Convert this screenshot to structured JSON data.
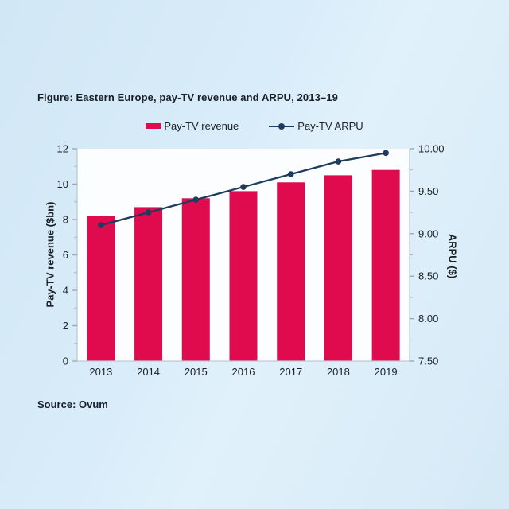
{
  "figure": {
    "title": "Figure: Eastern Europe, pay-TV revenue and ARPU, 2013–19",
    "source": "Source: Ovum"
  },
  "legend": {
    "items": [
      {
        "label": "Pay-TV revenue",
        "marker": "bar-swatch",
        "color": "#e00b4f"
      },
      {
        "label": "Pay-TV ARPU",
        "marker": "line-dot",
        "color": "#1e3c5c"
      }
    ]
  },
  "colors": {
    "accent_bar": "#e00b4f",
    "accent_line": "#1e3c5c",
    "page_background": "#d8ecf9",
    "plot_background": "#fbfdff",
    "axis_line": "#bccbd6",
    "tick_mark": "#93a5b1",
    "text": "#1c2127"
  },
  "chart_data": {
    "type": "bar+line combo",
    "categories": [
      "2013",
      "2014",
      "2015",
      "2016",
      "2017",
      "2018",
      "2019"
    ],
    "series": [
      {
        "name": "Pay-TV revenue",
        "type": "bar",
        "axis": "left",
        "values": [
          8.2,
          8.7,
          9.2,
          9.6,
          10.1,
          10.5,
          10.8
        ]
      },
      {
        "name": "Pay-TV ARPU",
        "type": "line",
        "axis": "right",
        "values": [
          9.1,
          9.25,
          9.4,
          9.55,
          9.7,
          9.85,
          9.95
        ]
      }
    ],
    "left_axis": {
      "label": "Pay-TV revenue ($bn)",
      "min": 0,
      "max": 12,
      "tick_step": 2,
      "minor_step": 1,
      "tick_labels": [
        "0",
        "2",
        "4",
        "6",
        "8",
        "10",
        "12"
      ]
    },
    "right_axis": {
      "label": "ARPU ($)",
      "min": 7.5,
      "max": 10,
      "tick_step": 0.5,
      "minor_step": 0.25,
      "tick_labels": [
        "7.50",
        "8.00",
        "8.50",
        "9.00",
        "9.50",
        "10.00"
      ]
    },
    "grid": false,
    "legend_position": "top-center"
  }
}
